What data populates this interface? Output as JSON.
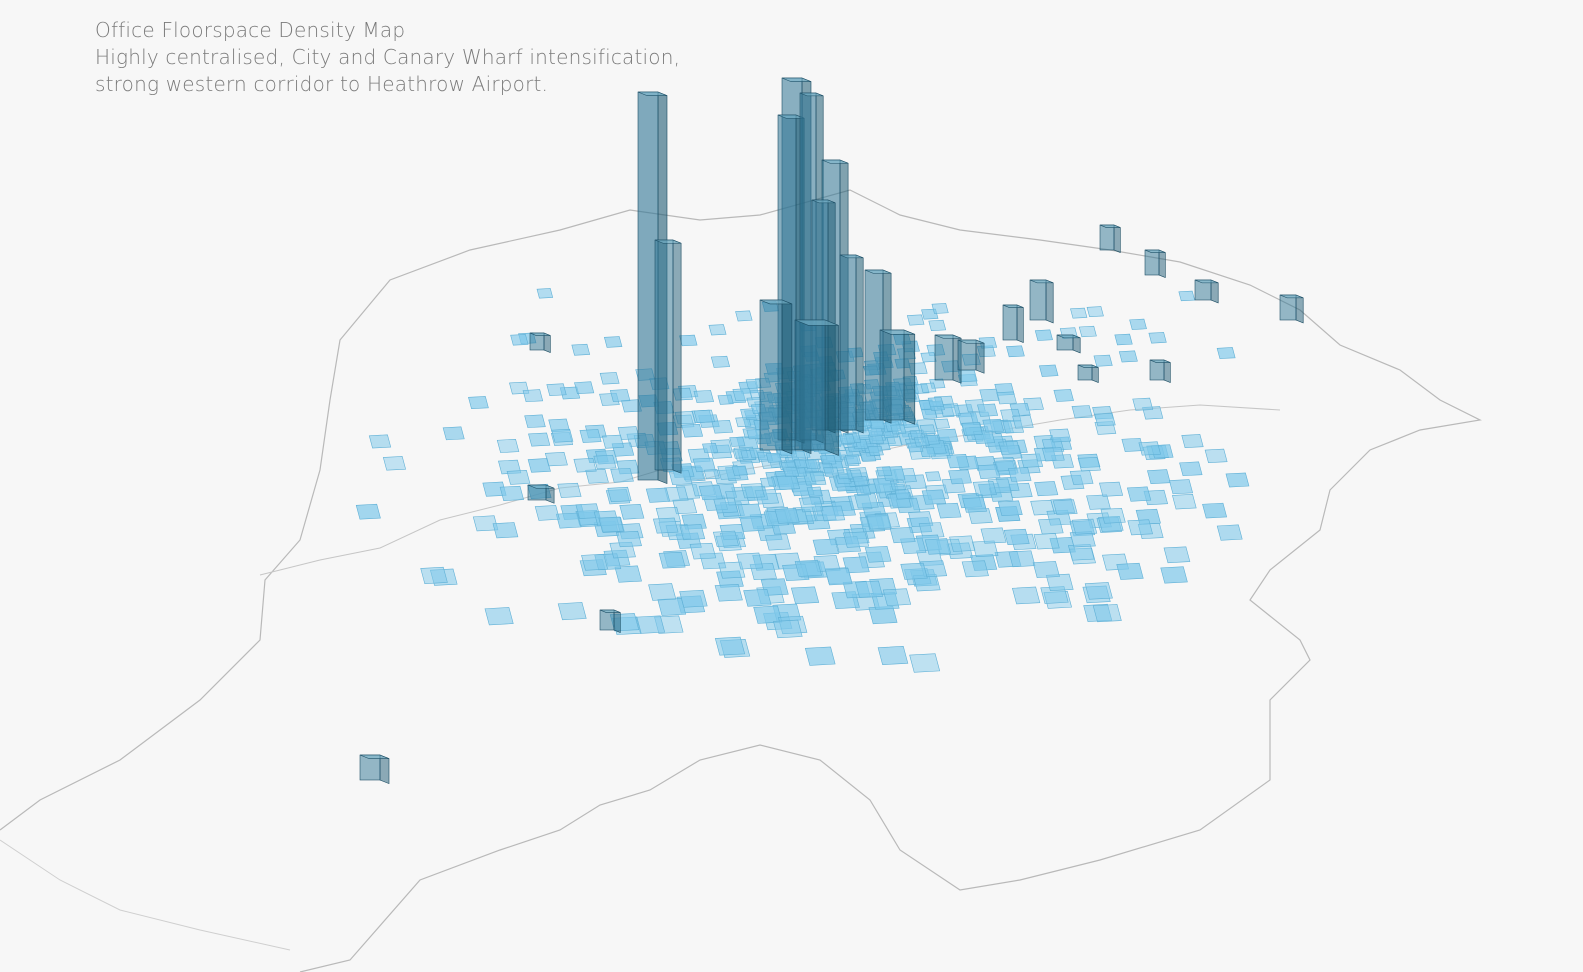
{
  "header": {
    "title": "Office Floorspace Density Map",
    "subtitle_lines": [
      "Highly centralised, City and Canary Wharf intensification,",
      "strong western corridor to Heathrow Airport."
    ]
  }
}
